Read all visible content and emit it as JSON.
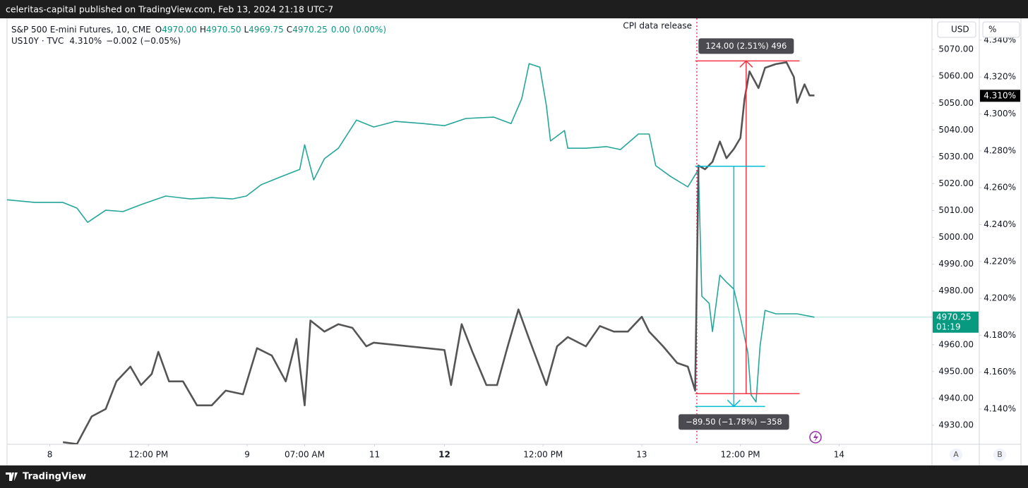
{
  "header": {
    "text": "celeritas-capital published on TradingView.com, Feb 13, 2024 21:18 UTC-7"
  },
  "footer": {
    "brand": "TradingView"
  },
  "axis_headers": [
    "USD",
    "%"
  ],
  "scale_buttons": [
    "A",
    "B"
  ],
  "chart_data": {
    "type": "line",
    "xlim": [
      -5.2,
      107.3
    ],
    "xticks": [
      {
        "value": 0,
        "label": "8"
      },
      {
        "value": 12,
        "label": "12:00 PM"
      },
      {
        "value": 24,
        "label": "9"
      },
      {
        "value": 31,
        "label": "07:00 AM"
      },
      {
        "value": 39.5,
        "label": "11"
      },
      {
        "value": 48,
        "label": "12",
        "bold": true
      },
      {
        "value": 60,
        "label": "12:00 PM"
      },
      {
        "value": 72,
        "label": "13"
      },
      {
        "value": 84,
        "label": "12:00 PM"
      },
      {
        "value": 96,
        "label": "14"
      }
    ],
    "ylim": [
      4922.9,
      5081.6
    ],
    "yticks": [
      {
        "value": 4930,
        "label": "4930.00"
      },
      {
        "value": 4940,
        "label": "4940.00"
      },
      {
        "value": 4950,
        "label": "4950.00"
      },
      {
        "value": 4960,
        "label": "4960.00"
      },
      {
        "value": 4970,
        "label": "4970.00"
      },
      {
        "value": 4980,
        "label": "4980.00"
      },
      {
        "value": 4990,
        "label": "4990.00"
      },
      {
        "value": 5000,
        "label": "5000.00"
      },
      {
        "value": 5010,
        "label": "5010.00"
      },
      {
        "value": 5020,
        "label": "5020.00"
      },
      {
        "value": 5030,
        "label": "5030.00"
      },
      {
        "value": 5040,
        "label": "5040.00"
      },
      {
        "value": 5050,
        "label": "5050.00"
      },
      {
        "value": 5060,
        "label": "5060.00"
      },
      {
        "value": 5070,
        "label": "5070.00"
      }
    ],
    "y2lim": [
      4.1209,
      4.3518
    ],
    "y2ticks": [
      {
        "value": 4.14,
        "label": "4.140%"
      },
      {
        "value": 4.16,
        "label": "4.160%"
      },
      {
        "value": 4.18,
        "label": "4.180%"
      },
      {
        "value": 4.2,
        "label": "4.200%"
      },
      {
        "value": 4.22,
        "label": "4.220%"
      },
      {
        "value": 4.24,
        "label": "4.240%"
      },
      {
        "value": 4.26,
        "label": "4.260%"
      },
      {
        "value": 4.28,
        "label": "4.280%"
      },
      {
        "value": 4.3,
        "label": "4.300%"
      },
      {
        "value": 4.32,
        "label": "4.320%"
      },
      {
        "value": 4.34,
        "label": "4.340%"
      }
    ],
    "series": [
      {
        "name": "S&P 500 E-mini Futures, 10, CME",
        "axis": "y",
        "color": "#26a69a",
        "last_color": "#089981",
        "stats": [
          {
            "key": "O",
            "label": "4970.00"
          },
          {
            "key": "H",
            "label": "4970.50"
          },
          {
            "key": "L",
            "label": "4969.75"
          },
          {
            "key": "C",
            "label": "4970.25"
          }
        ],
        "change": "0.00",
        "change_pct": "(0.00%)",
        "countdown": "01:19",
        "x": [
          -5.2,
          -1.8,
          1.6,
          3.3,
          4.6,
          6.8,
          8.9,
          11.1,
          14.1,
          17.1,
          19.7,
          22.2,
          23.9,
          25.7,
          28.2,
          30.4,
          31.0,
          32.1,
          33.4,
          35.1,
          37.3,
          39.4,
          42.0,
          45.4,
          48.0,
          50.6,
          54.0,
          56.1,
          57.4,
          58.3,
          59.6,
          60.4,
          60.9,
          62.6,
          63.0,
          65.2,
          67.7,
          69.4,
          71.6,
          72.9,
          73.7,
          75.5,
          77.6,
          78.9,
          79.3,
          80.2,
          80.6,
          81.5,
          82.3,
          83.2,
          84.0,
          84.9,
          85.3,
          85.9,
          86.4,
          87.0,
          88.3,
          90.9,
          93.0
        ],
        "values": [
          5014.0,
          5013.0,
          5013.0,
          5010.9,
          5005.6,
          5010.1,
          5009.6,
          5012.2,
          5015.4,
          5014.3,
          5014.8,
          5014.3,
          5015.4,
          5019.6,
          5022.7,
          5025.3,
          5034.5,
          5021.4,
          5029.3,
          5033.2,
          5043.7,
          5041.1,
          5043.2,
          5042.4,
          5041.6,
          5044.3,
          5044.8,
          5042.4,
          5051.6,
          5064.7,
          5063.4,
          5049.0,
          5035.9,
          5039.8,
          5033.2,
          5033.2,
          5033.8,
          5032.7,
          5038.5,
          5038.5,
          5026.7,
          5022.7,
          5018.8,
          5025.3,
          4978.1,
          4975.4,
          4964.9,
          4985.9,
          4983.3,
          4980.7,
          4970.2,
          4957.0,
          4941.3,
          4938.7,
          4959.7,
          4972.8,
          4971.5,
          4971.5,
          4970.25
        ]
      },
      {
        "name": "US10Y · TVC",
        "axis": "y2",
        "color": "#555555",
        "last_color": "#000000",
        "last": "4.310%",
        "change": "−0.002",
        "change_pct": "(−0.05%)",
        "x": [
          1.6,
          3.3,
          5.1,
          6.8,
          8.1,
          9.8,
          11.1,
          12.4,
          13.2,
          14.5,
          16.2,
          17.9,
          19.7,
          21.4,
          23.5,
          25.2,
          27.0,
          28.7,
          30.0,
          31.0,
          31.7,
          33.4,
          35.1,
          36.8,
          38.5,
          39.4,
          48.0,
          48.8,
          50.1,
          51.4,
          53.1,
          54.4,
          55.7,
          57.0,
          58.3,
          60.4,
          61.7,
          63.0,
          65.2,
          66.9,
          68.6,
          70.3,
          72.0,
          72.9,
          74.6,
          76.3,
          77.6,
          78.5,
          78.9,
          79.7,
          80.6,
          81.5,
          82.3,
          83.2,
          84.0,
          84.5,
          85.1,
          86.2,
          87.0,
          88.3,
          89.6,
          90.5,
          90.9,
          91.8,
          92.4,
          93.0
        ],
        "values": [
          4.122,
          4.121,
          4.136,
          4.14,
          4.155,
          4.163,
          4.153,
          4.159,
          4.171,
          4.155,
          4.155,
          4.142,
          4.142,
          4.15,
          4.148,
          4.173,
          4.169,
          4.155,
          4.178,
          4.142,
          4.188,
          4.182,
          4.186,
          4.184,
          4.174,
          4.176,
          4.172,
          4.153,
          4.186,
          4.171,
          4.153,
          4.153,
          4.174,
          4.194,
          4.178,
          4.153,
          4.174,
          4.179,
          4.174,
          4.185,
          4.182,
          4.182,
          4.19,
          4.182,
          4.174,
          4.165,
          4.163,
          4.15,
          4.272,
          4.27,
          4.274,
          4.285,
          4.276,
          4.281,
          4.287,
          4.308,
          4.323,
          4.314,
          4.325,
          4.327,
          4.328,
          4.32,
          4.306,
          4.316,
          4.31,
          4.31
        ]
      }
    ],
    "annotations": [
      {
        "text": "CPI data release",
        "x": 78.7,
        "color": "#e91e63"
      }
    ],
    "measures": [
      {
        "label": "124.00 (2.51%) 496",
        "from": 4941.75,
        "to": 5065.75,
        "x": [
          78.5,
          91.2
        ],
        "arrow_x": 84.7,
        "color": "#f23645"
      },
      {
        "label": "−89.50 (−1.78%) −358",
        "from": 5026.5,
        "to": 4937.0,
        "x": [
          78.5,
          87.0
        ],
        "arrow_x": 83.2,
        "color": "#00bcd4"
      }
    ]
  }
}
